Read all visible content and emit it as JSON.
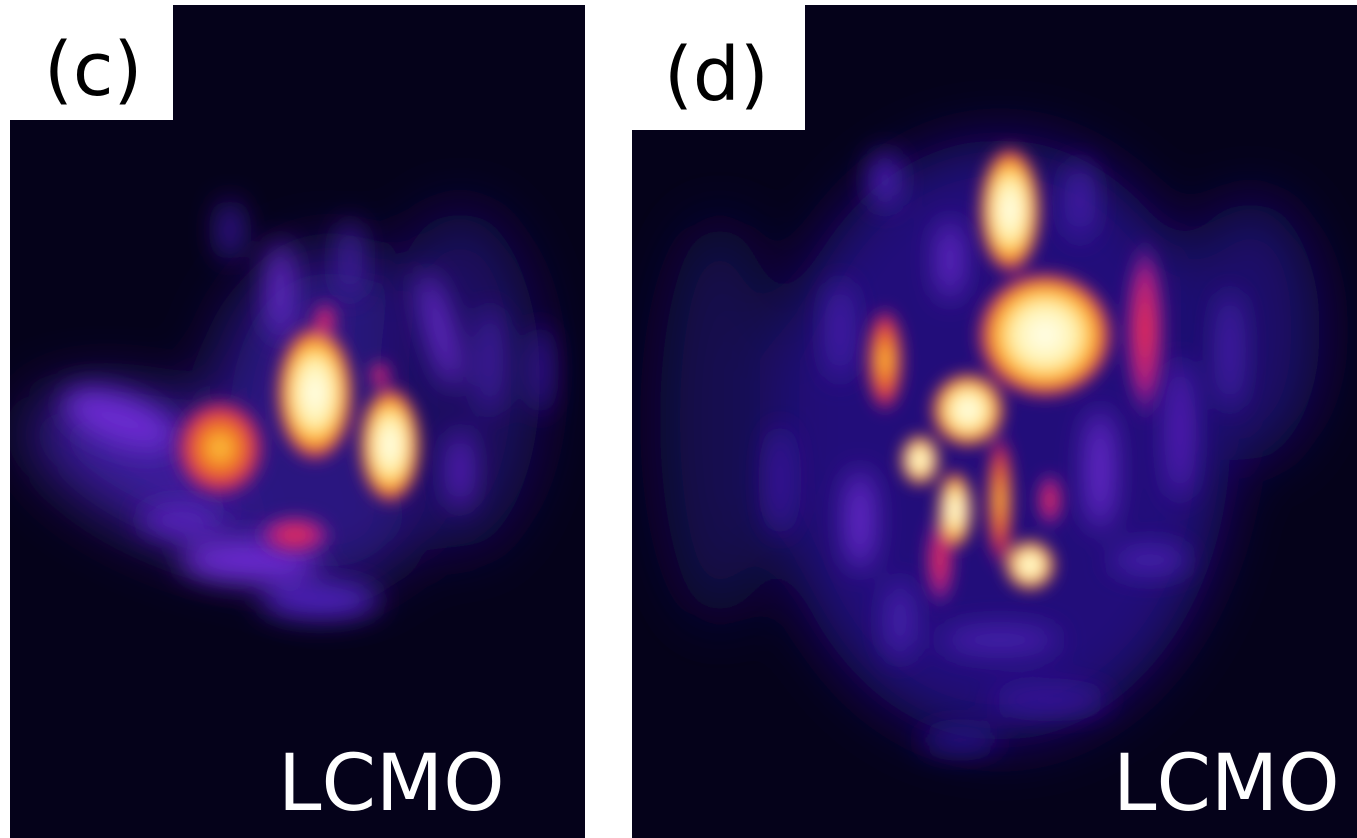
{
  "panels": [
    {
      "label": "(c)",
      "caption": "LCMO"
    },
    {
      "label": "(d)",
      "caption": "LCMO"
    }
  ]
}
